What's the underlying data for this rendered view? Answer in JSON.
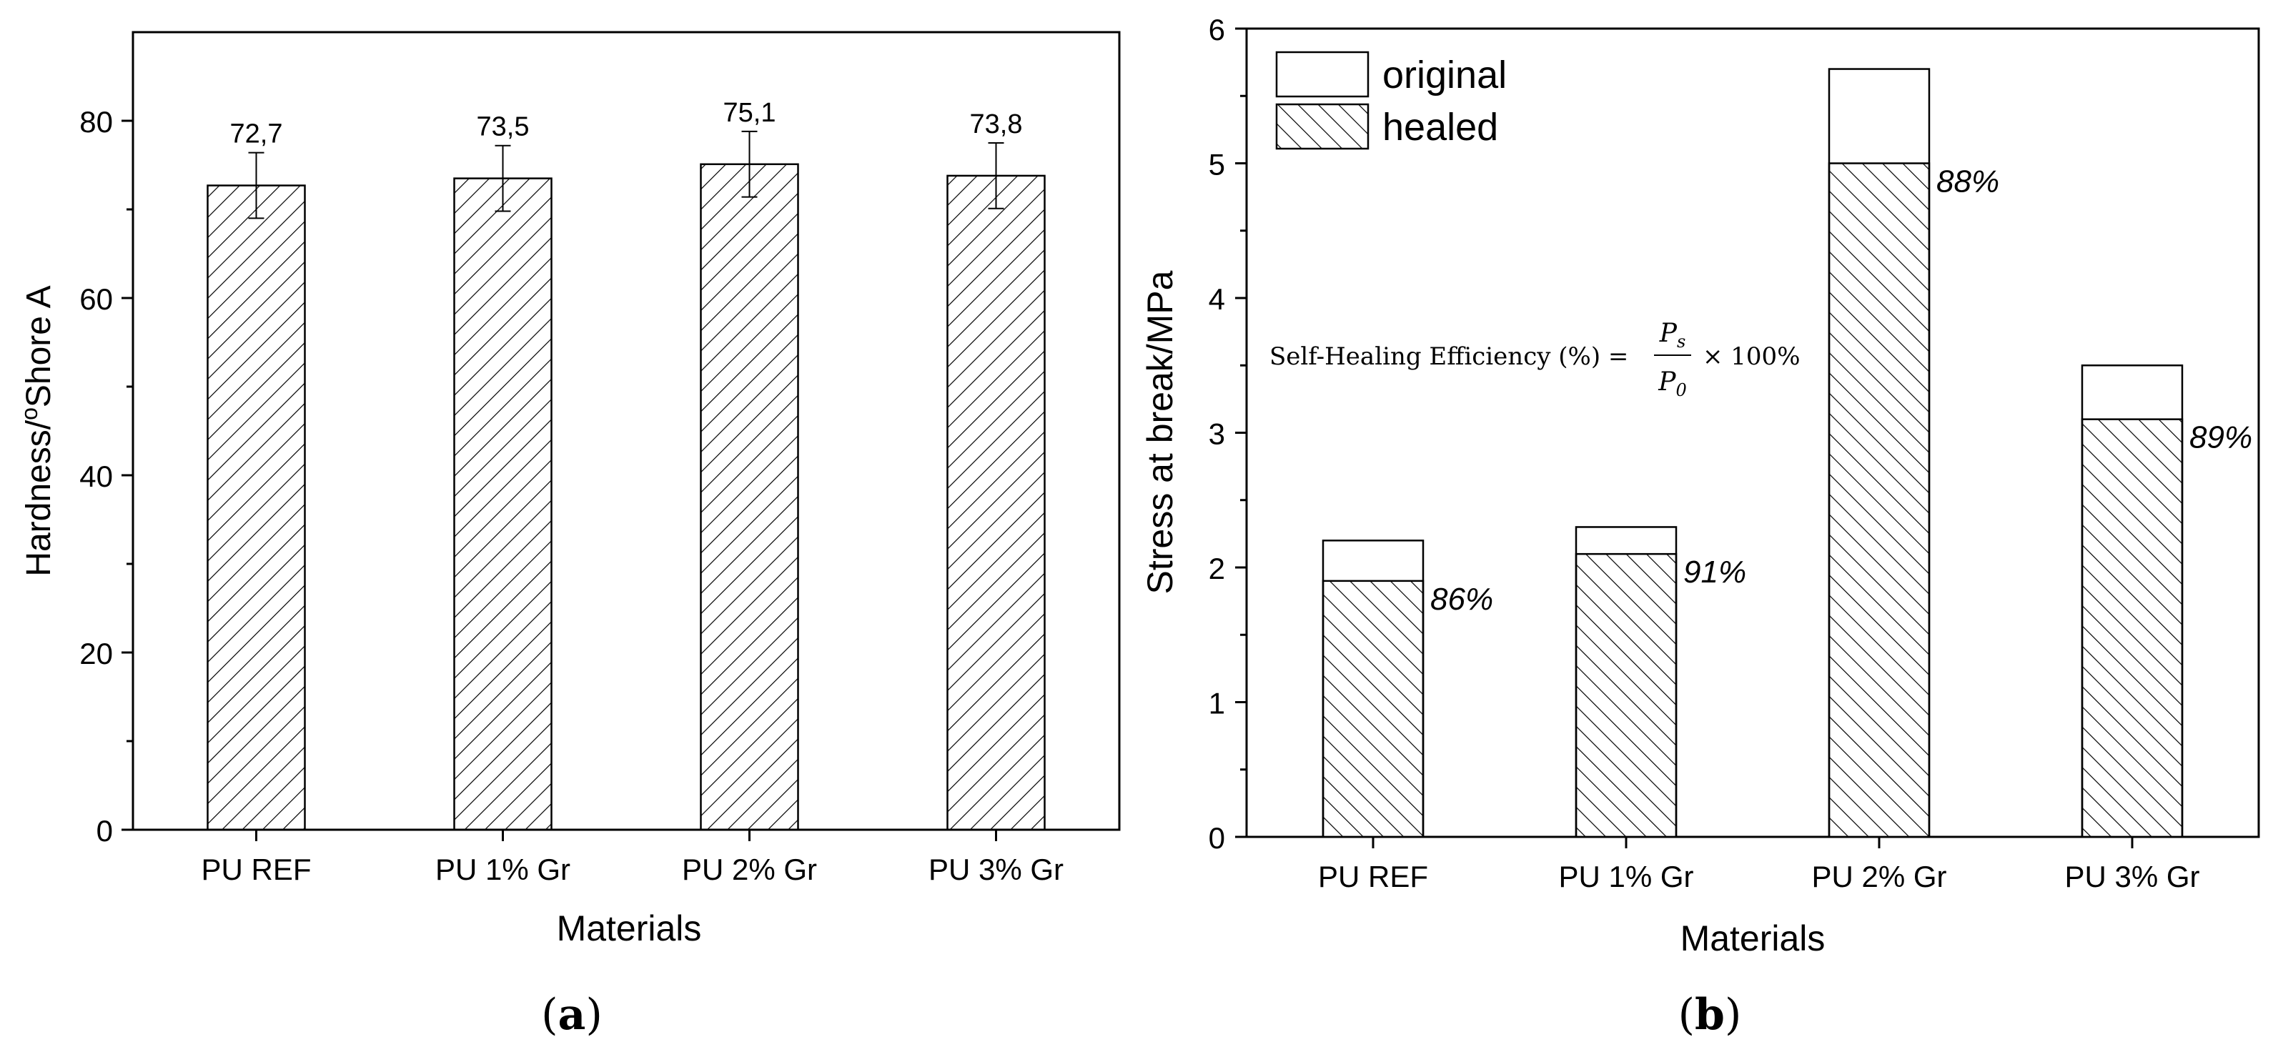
{
  "chart_data": [
    {
      "panel": "(a)",
      "type": "bar",
      "categories": [
        "PU REF",
        "PU 1% Gr",
        "PU 2% Gr",
        "PU 3% Gr"
      ],
      "values": [
        72.7,
        73.5,
        75.1,
        73.8
      ],
      "value_labels": [
        "72,7",
        "73,5",
        "75,1",
        "73,8"
      ],
      "error_low": [
        69.0,
        69.8,
        71.4,
        70.1
      ],
      "error_high": [
        76.4,
        77.2,
        78.8,
        77.5
      ],
      "xlabel": "Materials",
      "ylabel_main": "Hardness/",
      "ylabel_sup": "o",
      "ylabel_tail": "Shore A",
      "ylim": [
        0,
        90
      ],
      "yticks": [
        0,
        20,
        40,
        60,
        80
      ],
      "ytick_labels": [
        "0",
        "20",
        "40",
        "60",
        "80"
      ]
    },
    {
      "panel": "(b)",
      "type": "bar",
      "categories": [
        "PU REF",
        "PU 1% Gr",
        "PU 2% Gr",
        "PU 3% Gr"
      ],
      "series": [
        {
          "name": "original",
          "values": [
            2.2,
            2.3,
            5.7,
            3.5
          ]
        },
        {
          "name": "healed",
          "values": [
            1.9,
            2.1,
            5.0,
            3.1
          ]
        }
      ],
      "efficiency_labels": [
        "86%",
        "91%",
        "88%",
        "89%"
      ],
      "legend": [
        "original",
        "healed"
      ],
      "annotation": {
        "prefix": "Self-Healing Efficiency (%) =",
        "numerator": "P",
        "numerator_sub": "s",
        "denominator": "P",
        "denominator_sub": "0",
        "suffix": "× 100%"
      },
      "xlabel": "Materials",
      "ylabel": "Stress at break/MPa",
      "ylim": [
        0,
        6
      ],
      "yticks": [
        0,
        1,
        2,
        3,
        4,
        5,
        6
      ],
      "ytick_labels": [
        "0",
        "1",
        "2",
        "3",
        "4",
        "5",
        "6"
      ]
    }
  ]
}
